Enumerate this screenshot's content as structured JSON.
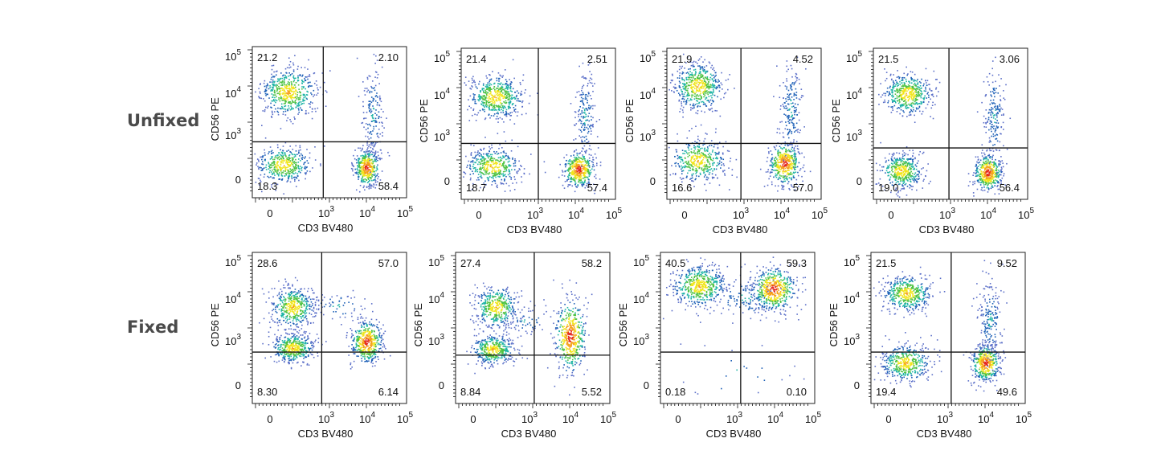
{
  "rows": [
    {
      "label": "Unfixed"
    },
    {
      "label": "Fixed"
    }
  ],
  "chart_data": [
    {
      "type": "scatter",
      "row": "Unfixed",
      "xlabel": "CD3 BV480",
      "ylabel": "CD56 PE",
      "x_ticks": [
        "0",
        "10",
        "10",
        "10"
      ],
      "x_tick_exp": [
        "",
        "3",
        "4",
        "5"
      ],
      "y_ticks": [
        "0",
        "10",
        "10",
        "10"
      ],
      "y_tick_exp": [
        "",
        "3",
        "4",
        "5"
      ],
      "quadrants": {
        "upper_left": "21.2",
        "upper_right": "2.10",
        "lower_left": "18.3",
        "lower_right": "58.4"
      }
    },
    {
      "type": "scatter",
      "row": "Unfixed",
      "xlabel": "CD3 BV480",
      "ylabel": "CD56 PE",
      "x_ticks": [
        "0",
        "10",
        "10",
        "10"
      ],
      "x_tick_exp": [
        "",
        "3",
        "4",
        "5"
      ],
      "y_ticks": [
        "0",
        "10",
        "10",
        "10"
      ],
      "y_tick_exp": [
        "",
        "3",
        "4",
        "5"
      ],
      "quadrants": {
        "upper_left": "21.4",
        "upper_right": "2.51",
        "lower_left": "18.7",
        "lower_right": "57.4"
      }
    },
    {
      "type": "scatter",
      "row": "Unfixed",
      "xlabel": "CD3 BV480",
      "ylabel": "CD56 PE",
      "x_ticks": [
        "0",
        "10",
        "10",
        "10"
      ],
      "x_tick_exp": [
        "",
        "3",
        "4",
        "5"
      ],
      "y_ticks": [
        "0",
        "10",
        "10",
        "10"
      ],
      "y_tick_exp": [
        "",
        "3",
        "4",
        "5"
      ],
      "quadrants": {
        "upper_left": "21.9",
        "upper_right": "4.52",
        "lower_left": "16.6",
        "lower_right": "57.0"
      }
    },
    {
      "type": "scatter",
      "row": "Unfixed",
      "xlabel": "CD3 BV480",
      "ylabel": "CD56 PE",
      "x_ticks": [
        "0",
        "10",
        "10",
        "10"
      ],
      "x_tick_exp": [
        "",
        "3",
        "4",
        "5"
      ],
      "y_ticks": [
        "0",
        "10",
        "10",
        "10"
      ],
      "y_tick_exp": [
        "",
        "3",
        "4",
        "5"
      ],
      "quadrants": {
        "upper_left": "21.5",
        "upper_right": "3.06",
        "lower_left": "19.0",
        "lower_right": "56.4"
      }
    },
    {
      "type": "scatter",
      "row": "Fixed",
      "xlabel": "CD3 BV480",
      "ylabel": "CD56 PE",
      "x_ticks": [
        "0",
        "10",
        "10",
        "10"
      ],
      "x_tick_exp": [
        "",
        "3",
        "4",
        "5"
      ],
      "y_ticks": [
        "0",
        "10",
        "10",
        "10"
      ],
      "y_tick_exp": [
        "",
        "3",
        "4",
        "5"
      ],
      "quadrants": {
        "upper_left": "28.6",
        "upper_right": "57.0",
        "lower_left": "8.30",
        "lower_right": "6.14"
      }
    },
    {
      "type": "scatter",
      "row": "Fixed",
      "xlabel": "CD3 BV480",
      "ylabel": "CD56 PE",
      "x_ticks": [
        "0",
        "10",
        "10",
        "10"
      ],
      "x_tick_exp": [
        "",
        "3",
        "4",
        "5"
      ],
      "y_ticks": [
        "0",
        "10",
        "10",
        "10"
      ],
      "y_tick_exp": [
        "",
        "3",
        "4",
        "5"
      ],
      "quadrants": {
        "upper_left": "27.4",
        "upper_right": "58.2",
        "lower_left": "8.84",
        "lower_right": "5.52"
      }
    },
    {
      "type": "scatter",
      "row": "Fixed",
      "xlabel": "CD3 BV480",
      "ylabel": "CD56 PE",
      "x_ticks": [
        "0",
        "10",
        "10",
        "10"
      ],
      "x_tick_exp": [
        "",
        "3",
        "4",
        "5"
      ],
      "y_ticks": [
        "0",
        "10",
        "10",
        "10"
      ],
      "y_tick_exp": [
        "",
        "3",
        "4",
        "5"
      ],
      "quadrants": {
        "upper_left": "40.5",
        "upper_right": "59.3",
        "lower_left": "0.18",
        "lower_right": "0.10"
      }
    },
    {
      "type": "scatter",
      "row": "Fixed",
      "xlabel": "CD3 BV480",
      "ylabel": "CD56 PE",
      "x_ticks": [
        "0",
        "10",
        "10",
        "10"
      ],
      "x_tick_exp": [
        "",
        "3",
        "4",
        "5"
      ],
      "y_ticks": [
        "0",
        "10",
        "10",
        "10"
      ],
      "y_tick_exp": [
        "",
        "3",
        "4",
        "5"
      ],
      "quadrants": {
        "upper_left": "21.5",
        "upper_right": "9.52",
        "lower_left": "19.4",
        "lower_right": "49.6"
      }
    }
  ]
}
